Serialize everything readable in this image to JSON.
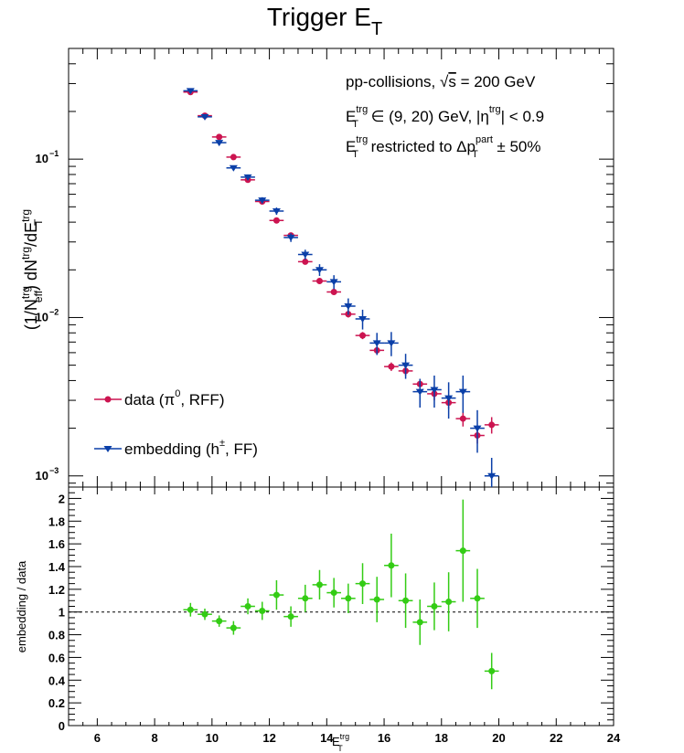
{
  "chart_data": [
    {
      "type": "scatter",
      "title_main": "Trigger E",
      "title_sub": "T",
      "ylabel_main": "(1/N",
      "ylabel_pieces": [
        "(1/N",
        "trg",
        "eff",
        ") dN",
        "trg",
        "/dE",
        "trg",
        "T"
      ],
      "yscale": "log",
      "xlim": [
        5,
        24
      ],
      "ylim": [
        0.00085,
        0.5
      ],
      "ytick_labels": [
        "10",
        "10",
        "10"
      ],
      "ytick_exponents": [
        "−1",
        "−2",
        "−3"
      ],
      "annotations": {
        "line1_a": "pp-collisions, ",
        "line1_sqrt": "√",
        "line1_s": "s",
        "line1_b": " = 200 GeV",
        "line2_E": "E",
        "line2_sup": "trg",
        "line2_sub": "T",
        "line2_b": " ∈ (9, 20) GeV, |η",
        "line2_sup2": "trg",
        "line2_c": "| < 0.9",
        "line3_E": "E",
        "line3_sup": "trg",
        "line3_sub": "T",
        "line3_b": " restricted to Δp",
        "line3_sup2": "part",
        "line3_sub2": "T",
        "line3_c": " ± 50%"
      },
      "legend": {
        "data_label_a": "data (π",
        "data_label_sup": "0",
        "data_label_b": ", RFF)",
        "emb_label_a": "embedding (h",
        "emb_label_sup": "±",
        "emb_label_b": ", FF)"
      },
      "colors": {
        "data": "#cc1450",
        "embedding": "#0a3fa8",
        "ratio": "#33cc14"
      },
      "series": [
        {
          "key": "data",
          "marker": "circle",
          "x": [
            9.25,
            9.75,
            10.25,
            10.75,
            11.25,
            11.75,
            12.25,
            12.75,
            13.25,
            13.75,
            14.25,
            14.75,
            15.25,
            15.75,
            16.25,
            16.75,
            17.25,
            17.75,
            18.25,
            18.75,
            19.25,
            19.75
          ],
          "y": [
            0.265,
            0.188,
            0.138,
            0.103,
            0.074,
            0.054,
            0.041,
            0.033,
            0.0225,
            0.017,
            0.0145,
            0.0105,
            0.0077,
            0.0062,
            0.0049,
            0.0046,
            0.0038,
            0.0033,
            0.0029,
            0.0023,
            0.0018,
            0.0021
          ],
          "yerr": [
            0.004,
            0.003,
            0.0025,
            0.002,
            0.0015,
            0.0012,
            0.001,
            0.0009,
            0.0007,
            0.0006,
            0.0006,
            0.0005,
            0.0004,
            0.00035,
            0.0003,
            0.0003,
            0.0003,
            0.0003,
            0.00025,
            0.00025,
            0.0002,
            0.00025
          ]
        },
        {
          "key": "embedding",
          "marker": "triangle-down",
          "x": [
            9.25,
            9.75,
            10.25,
            10.75,
            11.25,
            11.75,
            12.25,
            12.75,
            13.25,
            13.75,
            14.25,
            14.75,
            15.25,
            15.75,
            16.25,
            16.75,
            17.25,
            17.75,
            18.25,
            18.75,
            19.25,
            19.75
          ],
          "y": [
            0.27,
            0.185,
            0.127,
            0.088,
            0.077,
            0.055,
            0.047,
            0.032,
            0.025,
            0.02,
            0.0168,
            0.0118,
            0.0098,
            0.0069,
            0.0069,
            0.005,
            0.0034,
            0.0035,
            0.0031,
            0.0034,
            0.002,
            0.001
          ],
          "yerr": [
            0.006,
            0.005,
            0.004,
            0.003,
            0.003,
            0.0025,
            0.0025,
            0.002,
            0.0018,
            0.0017,
            0.0017,
            0.0014,
            0.0014,
            0.0011,
            0.0012,
            0.0009,
            0.0007,
            0.0008,
            0.0008,
            0.0009,
            0.0006,
            0.0003
          ]
        }
      ]
    },
    {
      "type": "scatter",
      "xlabel_main": "E",
      "xlabel_sup": "trg",
      "xlabel_sub": "T",
      "ylabel": "embedding / data",
      "xlim": [
        5,
        24
      ],
      "ylim": [
        0,
        2.1
      ],
      "reference_line": 1,
      "xtick_labels": [
        "6",
        "8",
        "10",
        "12",
        "14",
        "16",
        "18",
        "20",
        "22",
        "24"
      ],
      "ytick_labels": [
        "0",
        "0.2",
        "0.4",
        "0.6",
        "0.8",
        "1",
        "1.2",
        "1.4",
        "1.6",
        "1.8",
        "2"
      ],
      "series": [
        {
          "key": "ratio",
          "marker": "circle",
          "x": [
            9.25,
            9.75,
            10.25,
            10.75,
            11.25,
            11.75,
            12.25,
            12.75,
            13.25,
            13.75,
            14.25,
            14.75,
            15.25,
            15.75,
            16.25,
            16.75,
            17.25,
            17.75,
            18.25,
            18.75,
            19.25,
            19.75
          ],
          "y": [
            1.02,
            0.98,
            0.92,
            0.86,
            1.05,
            1.01,
            1.15,
            0.96,
            1.12,
            1.24,
            1.17,
            1.12,
            1.25,
            1.11,
            1.41,
            1.1,
            0.91,
            1.05,
            1.09,
            1.54,
            1.12,
            0.48
          ],
          "yerr": [
            0.06,
            0.05,
            0.05,
            0.06,
            0.07,
            0.08,
            0.13,
            0.09,
            0.12,
            0.13,
            0.13,
            0.13,
            0.18,
            0.2,
            0.28,
            0.24,
            0.2,
            0.21,
            0.26,
            0.45,
            0.26,
            0.16
          ]
        }
      ]
    }
  ]
}
